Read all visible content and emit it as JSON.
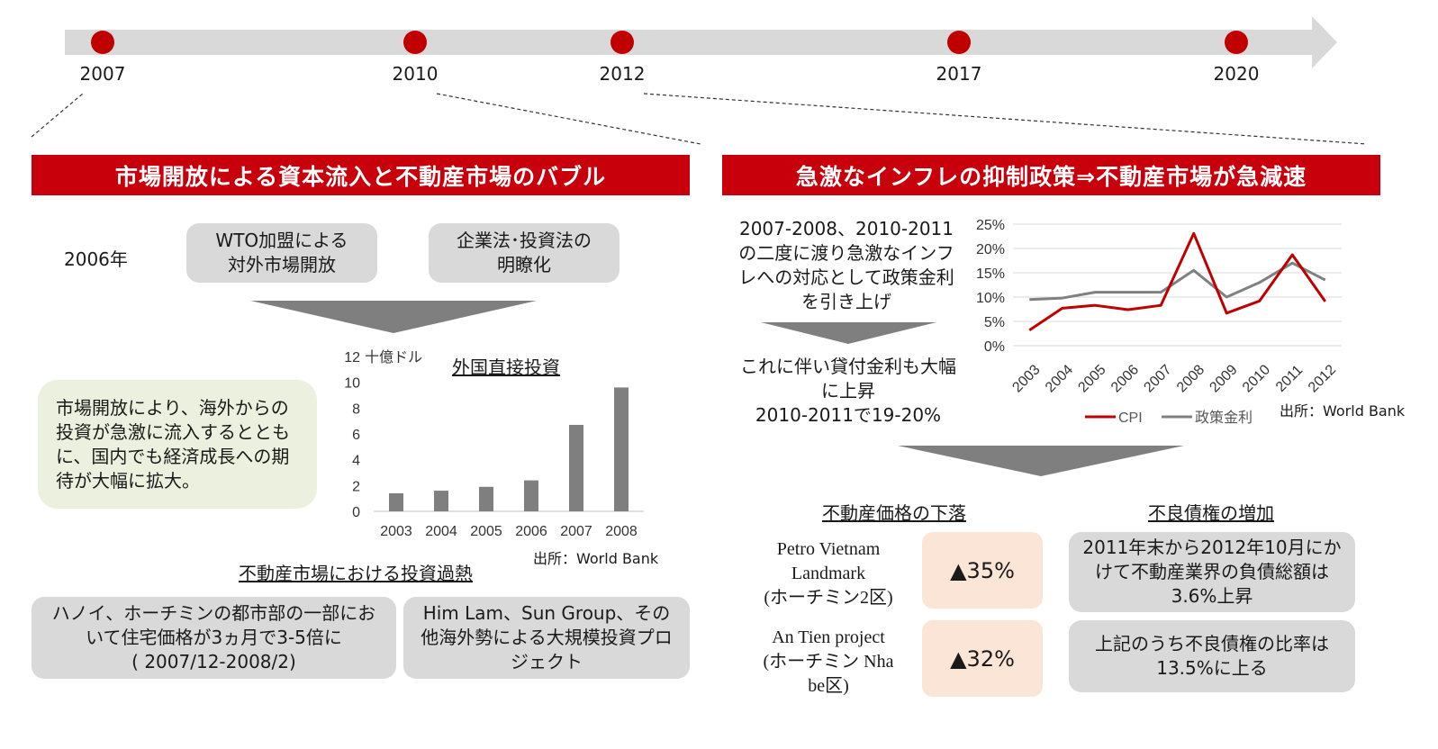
{
  "timeline": {
    "years": [
      "2007",
      "2010",
      "2012",
      "2017",
      "2020"
    ]
  },
  "left": {
    "banner": "市場開放による資本流入と不動産市場のバブル",
    "year_label": "2006年",
    "policy_boxes": [
      "WTO加盟による\n対外市場開放",
      "企業法･投資法の\n明瞭化"
    ],
    "expectation_text": "市場開放により、海外からの投資が急激に流入するとともに、国内でも経済成長への期待が大幅に拡大。",
    "chart_unit": "十億ドル",
    "chart_source": "出所：World Bank",
    "section_title": "不動産市場における投資過熱",
    "bottom_boxes": [
      "ハノイ、ホーチミンの都市部の一部において住宅価格が3ヵ月で3-5倍に\n( 2007/12-2008/2)",
      "Him Lam、Sun Group、その他海外勢による大規模投資プロジェクト"
    ]
  },
  "right": {
    "banner": "急激なインフレの抑制政策⇒不動産市場が急減速",
    "policy_text": "2007-2008、2010-2011の二度に渡り急激なインフレへの対応として政策金利を引き上げ",
    "result_text": "これに伴い貸付金利も大幅に上昇\n2010-2011で19-20%",
    "chart_source": "出所：World Bank",
    "price_title": "不動産価格の下落",
    "npl_title": "不良債権の増加",
    "projects": [
      {
        "name": "Petro Vietnam Landmark\n(ホーチミン2区)",
        "change": "▲35%"
      },
      {
        "name": "An Tien project\n(ホーチミン Nha be区)",
        "change": "▲32%"
      }
    ],
    "npl_boxes": [
      "2011年末から2012年10月にかけて不動産業界の負債総額は3.6%上昇",
      "上記のうち不良債権の比率は13.5%に上る"
    ]
  },
  "colors": {
    "accent_red": "#c8000c",
    "timeline_gray": "#d9d9d9",
    "box_gray": "#d9d9d9",
    "box_peach": "#fbe5d6",
    "box_green": "#ebf1de",
    "bar_gray": "#7f7f7f",
    "cpi_red": "#c00000",
    "rate_gray": "#808080"
  },
  "chart_data": [
    {
      "type": "bar",
      "title": "外国直接投資",
      "ylabel": "十億ドル",
      "categories": [
        "2003",
        "2004",
        "2005",
        "2006",
        "2007",
        "2008"
      ],
      "values": [
        1.4,
        1.6,
        1.9,
        2.4,
        6.7,
        9.6
      ],
      "ylim": [
        0,
        12
      ],
      "yticks": [
        0,
        2,
        4,
        6,
        8,
        10,
        12
      ],
      "grid": false
    },
    {
      "type": "line",
      "categories": [
        "2003",
        "2004",
        "2005",
        "2006",
        "2007",
        "2008",
        "2009",
        "2010",
        "2011",
        "2012"
      ],
      "series": [
        {
          "name": "CPI",
          "values": [
            3.2,
            7.7,
            8.3,
            7.4,
            8.3,
            23.1,
            6.7,
            9.2,
            18.7,
            9.1
          ]
        },
        {
          "name": "政策金利",
          "values": [
            9.5,
            9.8,
            11.0,
            11.0,
            11.0,
            15.5,
            10.0,
            13.0,
            17.0,
            13.5
          ]
        }
      ],
      "ylim": [
        0,
        25
      ],
      "yticks": [
        "0%",
        "5%",
        "10%",
        "15%",
        "20%",
        "25%"
      ],
      "grid": true,
      "legend": "bottom"
    }
  ]
}
